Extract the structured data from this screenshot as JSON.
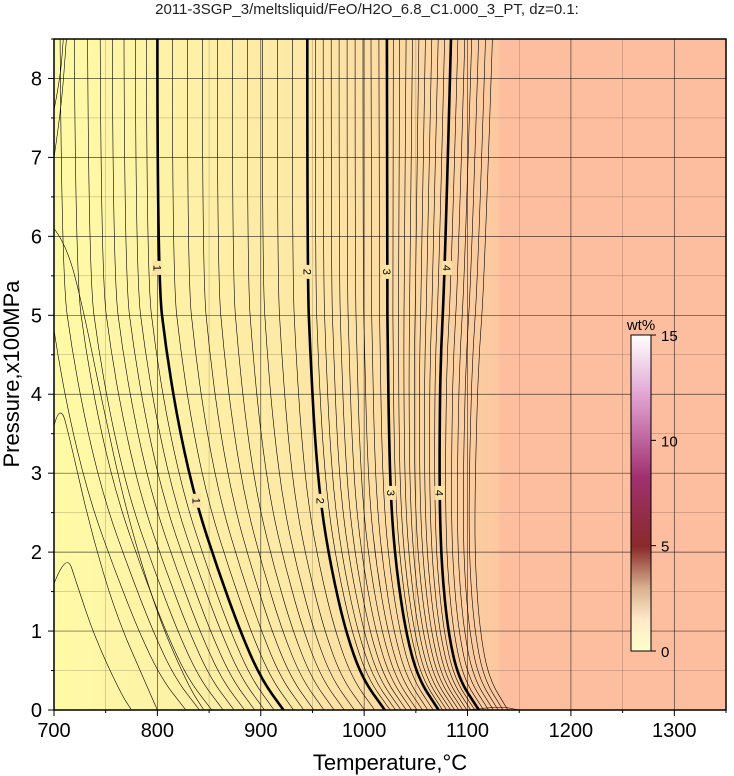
{
  "title": "2011-3SGP_3/meltsliquid/FeO/H2O_6.8_C1.000_3_PT, dz=0.1:",
  "chart_data": {
    "type": "heatmap",
    "xlabel": "Temperature,°C",
    "ylabel": "Pressure,x100MPa",
    "xlim": [
      700,
      1350
    ],
    "ylim": [
      0,
      8.5
    ],
    "xticks": [
      700,
      800,
      900,
      1000,
      1100,
      1200,
      1300
    ],
    "yticks": [
      0,
      1,
      2,
      3,
      4,
      5,
      6,
      7,
      8
    ],
    "grid": true,
    "x_minor_step": 50,
    "y_minor_step": 0.5,
    "contour_interval": 0.1,
    "major_contours": [
      {
        "level": 1,
        "label": "1",
        "points": [
          [
            800,
            8.5
          ],
          [
            800,
            5.5
          ],
          [
            809,
            4.5
          ],
          [
            822,
            3.5
          ],
          [
            838,
            2.6
          ],
          [
            858,
            1.8
          ],
          [
            880,
            1.0
          ],
          [
            900,
            0.4
          ],
          [
            922,
            0.0
          ]
        ]
      },
      {
        "level": 2,
        "label": "2",
        "points": [
          [
            945,
            8.5
          ],
          [
            945,
            5.5
          ],
          [
            948,
            4.5
          ],
          [
            952,
            3.5
          ],
          [
            958,
            2.6
          ],
          [
            968,
            1.8
          ],
          [
            982,
            1.0
          ],
          [
            998,
            0.4
          ],
          [
            1020,
            0.0
          ]
        ]
      },
      {
        "level": 3,
        "label": "3",
        "points": [
          [
            1022,
            8.5
          ],
          [
            1022,
            5.5
          ],
          [
            1023,
            4.5
          ],
          [
            1024,
            3.5
          ],
          [
            1026,
            2.6
          ],
          [
            1031,
            1.8
          ],
          [
            1040,
            1.0
          ],
          [
            1052,
            0.4
          ],
          [
            1072,
            0.0
          ]
        ]
      },
      {
        "level": 4,
        "label": "4",
        "points": [
          [
            1084,
            8.5
          ],
          [
            1078,
            5.5
          ],
          [
            1074,
            4.5
          ],
          [
            1073,
            3.5
          ],
          [
            1073,
            2.6
          ],
          [
            1075,
            1.8
          ],
          [
            1081,
            1.0
          ],
          [
            1091,
            0.4
          ],
          [
            1111,
            0.0
          ]
        ]
      }
    ],
    "label_positions": [
      {
        "level": 1,
        "at": [
          [
            800,
            5.6
          ],
          [
            838,
            2.65
          ]
        ]
      },
      {
        "level": 2,
        "at": [
          [
            945,
            5.55
          ],
          [
            958,
            2.65
          ]
        ]
      },
      {
        "level": 3,
        "at": [
          [
            1022,
            5.55
          ],
          [
            1026,
            2.75
          ]
        ]
      },
      {
        "level": 4,
        "at": [
          [
            1080,
            5.6
          ],
          [
            1073,
            2.75
          ]
        ]
      }
    ],
    "colorbar": {
      "label": "wt%",
      "range": [
        0,
        15
      ],
      "ticks": [
        0,
        5,
        10,
        15
      ],
      "colors": [
        "#ffffcc",
        "#ffe8c8",
        "#d8b090",
        "#8a2a2a",
        "#a03070",
        "#ffffff"
      ]
    },
    "fill_colors": {
      "low": "#fffaa6",
      "mid": "#fbd8a0",
      "high": "#fdbe9f"
    },
    "saturated_region_color": "#fdbe9f"
  }
}
